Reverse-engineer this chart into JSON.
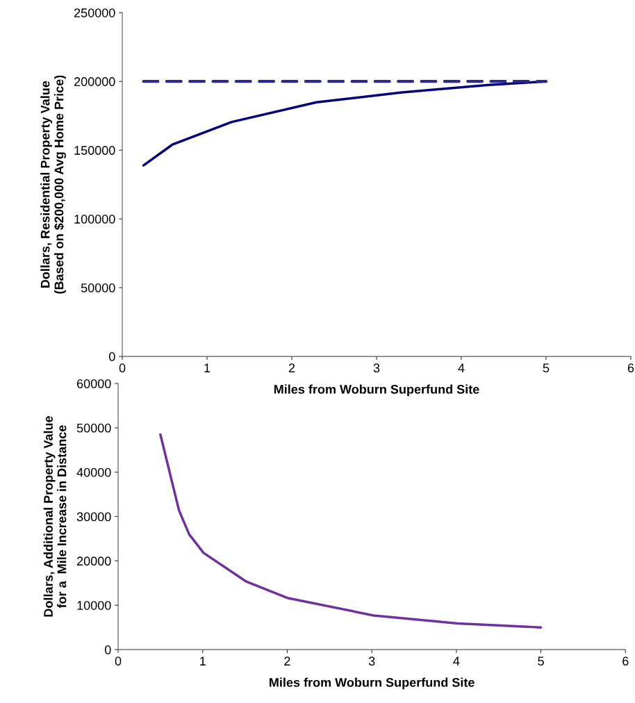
{
  "chart_data": [
    {
      "type": "line",
      "xlabel": "Miles from Woburn Superfund Site",
      "ylabel": "Dollars, Residential Property Value\n(Based on $200,000 Avg Home Price)",
      "xlim": [
        0,
        6
      ],
      "xticks": [
        0,
        1,
        2,
        3,
        4,
        5,
        6
      ],
      "ylim": [
        0,
        250000
      ],
      "yticks": [
        0,
        50000,
        100000,
        150000,
        200000,
        250000
      ],
      "grid": false,
      "legend": false,
      "series": [
        {
          "color": "#000080",
          "line_style": "solid",
          "x": [
            0.25,
            0.59,
            1.29,
            2.29,
            3.3,
            4.3,
            5.0
          ],
          "values": [
            138900,
            154000,
            170500,
            184800,
            192000,
            197300,
            200000
          ]
        },
        {
          "color": "#2b2b8c",
          "line_style": "dashed",
          "x": [
            0.25,
            5.0
          ],
          "values": [
            200000,
            200000
          ]
        }
      ]
    },
    {
      "type": "line",
      "xlabel": "Miles from Woburn Superfund Site",
      "ylabel": "Dollars, Additional Property Value\nfor a  Mile Increase in Distance",
      "xlim": [
        0,
        6
      ],
      "xticks": [
        0,
        1,
        2,
        3,
        4,
        5,
        6
      ],
      "ylim": [
        0,
        60000
      ],
      "yticks": [
        0,
        10000,
        20000,
        30000,
        40000,
        50000,
        60000
      ],
      "grid": false,
      "legend": false,
      "series": [
        {
          "color": "#7030a0",
          "line_style": "solid",
          "x": [
            0.5,
            0.72,
            0.84,
            1.01,
            1.51,
            2.01,
            3.02,
            4.02,
            5.0
          ],
          "values": [
            48500,
            31400,
            26000,
            21800,
            15400,
            11600,
            7700,
            5900,
            5000
          ]
        }
      ]
    }
  ]
}
